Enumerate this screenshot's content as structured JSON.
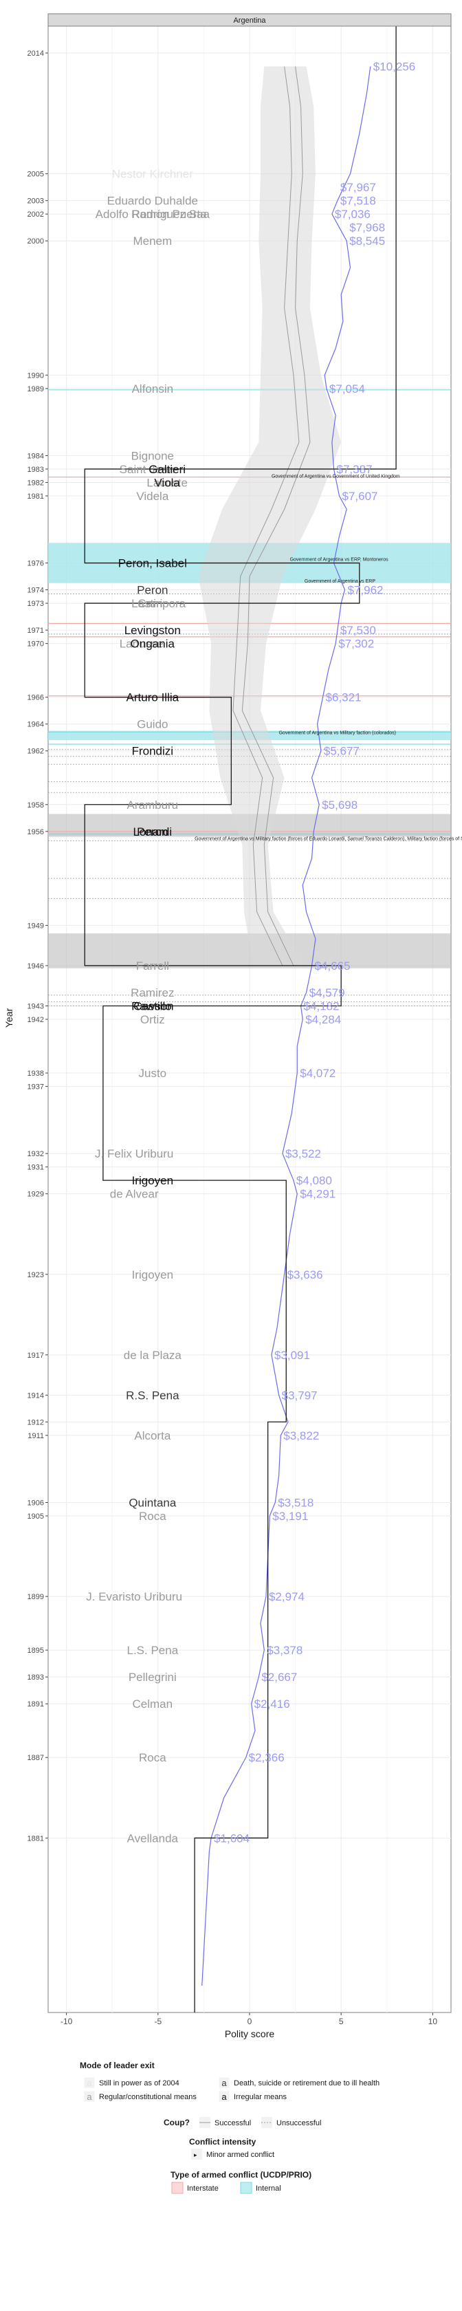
{
  "panel_title": "Argentina",
  "chart_data": {
    "type": "line",
    "xlabel": "Polity score",
    "ylabel": "Year",
    "xlim": [
      -11,
      11
    ],
    "ylim": [
      1868,
      2016
    ],
    "x_ticks": [
      -10,
      -5,
      0,
      5,
      10
    ],
    "y_ticks": [
      1881,
      1887,
      1891,
      1893,
      1895,
      1899,
      1905,
      1906,
      1911,
      1912,
      1914,
      1917,
      1923,
      1929,
      1931,
      1932,
      1937,
      1938,
      1942,
      1943,
      1946,
      1949,
      1956,
      1958,
      1962,
      1964,
      1966,
      1970,
      1971,
      1973,
      1974,
      1976,
      1981,
      1982,
      1983,
      1984,
      1989,
      1990,
      2000,
      2002,
      2003,
      2005,
      2014
    ],
    "grid": true,
    "polity_steps": [
      {
        "from": 1868,
        "to": 1881,
        "value": -3
      },
      {
        "from": 1881,
        "to": 1912,
        "value": 1
      },
      {
        "from": 1912,
        "to": 1916,
        "value": 2
      },
      {
        "from": 1916,
        "to": 1930,
        "value": 2
      },
      {
        "from": 1930,
        "to": 1943,
        "value": -8
      },
      {
        "from": 1943,
        "to": 1946,
        "value": 5
      },
      {
        "from": 1946,
        "to": 1955,
        "value": -9
      },
      {
        "from": 1955,
        "to": 1958,
        "value": -9
      },
      {
        "from": 1958,
        "to": 1966,
        "value": -1
      },
      {
        "from": 1966,
        "to": 1973,
        "value": -9
      },
      {
        "from": 1973,
        "to": 1976,
        "value": 6
      },
      {
        "from": 1976,
        "to": 1983,
        "value": -9
      },
      {
        "from": 1983,
        "to": 1990,
        "value": 8
      },
      {
        "from": 1990,
        "to": 2016,
        "value": 8
      }
    ],
    "gdp_labels": [
      {
        "year": 2013,
        "text": "$10,256"
      },
      {
        "year": 2004,
        "text": "$7,967"
      },
      {
        "year": 2003,
        "text": "$7,518"
      },
      {
        "year": 2002,
        "text": "$7,036"
      },
      {
        "year": 2001,
        "text": "$7,968"
      },
      {
        "year": 2000,
        "text": "$8,545"
      },
      {
        "year": 1989,
        "text": "$7,054"
      },
      {
        "year": 1983,
        "text": "$7,387"
      },
      {
        "year": 1981,
        "text": "$7,607"
      },
      {
        "year": 1974,
        "text": "$7,962"
      },
      {
        "year": 1971,
        "text": "$7,530"
      },
      {
        "year": 1970,
        "text": "$7,302"
      },
      {
        "year": 1966,
        "text": "$6,321"
      },
      {
        "year": 1962,
        "text": "$5,677"
      },
      {
        "year": 1958,
        "text": "$5,698"
      },
      {
        "year": 1946,
        "text": "$4,665"
      },
      {
        "year": 1944,
        "text": "$4,579"
      },
      {
        "year": 1943,
        "text": "$4,182"
      },
      {
        "year": 1942,
        "text": "$4,284"
      },
      {
        "year": 1938,
        "text": "$4,072"
      },
      {
        "year": 1932,
        "text": "$3,522"
      },
      {
        "year": 1930,
        "text": "$4,080"
      },
      {
        "year": 1929,
        "text": "$4,291"
      },
      {
        "year": 1923,
        "text": "$3,636"
      },
      {
        "year": 1917,
        "text": "$3,091"
      },
      {
        "year": 1914,
        "text": "$3,797"
      },
      {
        "year": 1911,
        "text": "$3,822"
      },
      {
        "year": 1906,
        "text": "$3,518"
      },
      {
        "year": 1905,
        "text": "$3,191"
      },
      {
        "year": 1899,
        "text": "$2,974"
      },
      {
        "year": 1895,
        "text": "$3,378"
      },
      {
        "year": 1893,
        "text": "$2,667"
      },
      {
        "year": 1891,
        "text": "$2,416"
      },
      {
        "year": 1887,
        "text": "$2,366"
      },
      {
        "year": 1881,
        "text": "$1,604"
      }
    ],
    "gdp_line": [
      [
        1870,
        -2.6
      ],
      [
        1875,
        -2.4
      ],
      [
        1880,
        -2.2
      ],
      [
        1881,
        -2.1
      ],
      [
        1884,
        -1.4
      ],
      [
        1887,
        -0.2
      ],
      [
        1889,
        0.3
      ],
      [
        1891,
        0.1
      ],
      [
        1893,
        0.5
      ],
      [
        1895,
        0.8
      ],
      [
        1897,
        0.6
      ],
      [
        1899,
        0.9
      ],
      [
        1902,
        1.0
      ],
      [
        1905,
        1.1
      ],
      [
        1906,
        1.4
      ],
      [
        1908,
        1.6
      ],
      [
        1911,
        1.7
      ],
      [
        1912,
        2.1
      ],
      [
        1914,
        1.6
      ],
      [
        1917,
        1.2
      ],
      [
        1919,
        1.5
      ],
      [
        1923,
        1.9
      ],
      [
        1926,
        2.2
      ],
      [
        1929,
        2.6
      ],
      [
        1930,
        2.4
      ],
      [
        1932,
        1.8
      ],
      [
        1935,
        2.3
      ],
      [
        1938,
        2.6
      ],
      [
        1940,
        2.6
      ],
      [
        1942,
        2.9
      ],
      [
        1943,
        2.8
      ],
      [
        1944,
        3.1
      ],
      [
        1946,
        3.4
      ],
      [
        1948,
        3.6
      ],
      [
        1950,
        3.1
      ],
      [
        1952,
        2.9
      ],
      [
        1954,
        3.4
      ],
      [
        1956,
        3.5
      ],
      [
        1958,
        3.8
      ],
      [
        1960,
        3.4
      ],
      [
        1962,
        3.9
      ],
      [
        1964,
        3.7
      ],
      [
        1966,
        4.0
      ],
      [
        1968,
        4.3
      ],
      [
        1970,
        4.7
      ],
      [
        1971,
        4.8
      ],
      [
        1973,
        5.0
      ],
      [
        1974,
        5.2
      ],
      [
        1976,
        4.6
      ],
      [
        1978,
        4.9
      ],
      [
        1980,
        5.3
      ],
      [
        1981,
        4.9
      ],
      [
        1983,
        4.6
      ],
      [
        1985,
        4.5
      ],
      [
        1987,
        4.7
      ],
      [
        1989,
        4.2
      ],
      [
        1990,
        4.1
      ],
      [
        1992,
        4.7
      ],
      [
        1994,
        5.1
      ],
      [
        1996,
        5.0
      ],
      [
        1998,
        5.5
      ],
      [
        2000,
        5.3
      ],
      [
        2002,
        4.5
      ],
      [
        2003,
        4.8
      ],
      [
        2005,
        5.5
      ],
      [
        2008,
        6.0
      ],
      [
        2011,
        6.4
      ],
      [
        2013,
        6.6
      ]
    ],
    "grey_band": [
      [
        1946,
        0.2,
        3.0
      ],
      [
        1950,
        -0.3,
        1.3
      ],
      [
        1955,
        -0.4,
        1.0
      ],
      [
        1960,
        -1.6,
        1.9
      ],
      [
        1965,
        -2.2,
        0.6
      ],
      [
        1970,
        -2.1,
        0.9
      ],
      [
        1975,
        -2.8,
        1.8
      ],
      [
        1980,
        -1.5,
        3.6
      ],
      [
        1985,
        0.5,
        5.0
      ],
      [
        1990,
        0.6,
        3.9
      ],
      [
        1995,
        0.7,
        3.3
      ],
      [
        2000,
        0.5,
        3.4
      ],
      [
        2005,
        0.6,
        3.6
      ],
      [
        2010,
        0.6,
        3.5
      ],
      [
        2013,
        0.8,
        3.1
      ]
    ],
    "grey_lines": [
      {
        "values": [
          [
            1946,
            1.8
          ],
          [
            1950,
            0.4
          ],
          [
            1955,
            0.2
          ],
          [
            1960,
            0.7
          ],
          [
            1965,
            -0.9
          ],
          [
            1970,
            -0.7
          ],
          [
            1975,
            -0.5
          ],
          [
            1980,
            1.2
          ],
          [
            1985,
            2.7
          ],
          [
            1990,
            2.4
          ],
          [
            1995,
            1.9
          ],
          [
            2000,
            2.1
          ],
          [
            2005,
            2.3
          ],
          [
            2010,
            2.2
          ],
          [
            2013,
            1.9
          ]
        ]
      },
      {
        "values": [
          [
            1946,
            2.4
          ],
          [
            1950,
            1.0
          ],
          [
            1955,
            0.8
          ],
          [
            1960,
            1.3
          ],
          [
            1965,
            -0.4
          ],
          [
            1970,
            -0.1
          ],
          [
            1975,
            0.0
          ],
          [
            1980,
            1.9
          ],
          [
            1985,
            3.3
          ],
          [
            1990,
            3.0
          ],
          [
            1995,
            2.5
          ],
          [
            2000,
            2.6
          ],
          [
            2005,
            2.9
          ],
          [
            2010,
            2.8
          ],
          [
            2013,
            2.5
          ]
        ]
      }
    ],
    "leaders": [
      {
        "name": "Nestor Kirchner",
        "year": 2005,
        "style": "inpower",
        "x": -5.3
      },
      {
        "name": "Eduardo Duhalde",
        "year": 2003,
        "style": "regular",
        "x": -5.3
      },
      {
        "name": "Adolfo Rodríguez Saa",
        "year": 2002,
        "style": "regular",
        "x": -5.3
      },
      {
        "name": "Ramon Puerta",
        "year": 2002,
        "style": "regular",
        "x": -4.4
      },
      {
        "name": "Menem",
        "year": 2000,
        "style": "regular",
        "x": -5.3
      },
      {
        "name": "Alfonsin",
        "year": 1989,
        "style": "regular",
        "x": -5.3
      },
      {
        "name": "Bignone",
        "year": 1984,
        "style": "regular",
        "x": -5.3
      },
      {
        "name": "Saint Jean",
        "year": 1983,
        "style": "regular",
        "x": -5.6
      },
      {
        "name": "Galtieri",
        "year": 1983,
        "style": "irregular",
        "x": -4.5
      },
      {
        "name": "Lacoste",
        "year": 1982,
        "style": "regular",
        "x": -4.5
      },
      {
        "name": "Viola",
        "year": 1982,
        "style": "irregular",
        "x": -4.5
      },
      {
        "name": "Videla",
        "year": 1981,
        "style": "regular",
        "x": -5.3
      },
      {
        "name": "Peron, Isabel",
        "year": 1976,
        "style": "irregular",
        "x": -5.3
      },
      {
        "name": "Peron",
        "year": 1974,
        "style": "death",
        "x": -5.3
      },
      {
        "name": "Lastiri",
        "year": 1973,
        "style": "regular",
        "x": -5.6
      },
      {
        "name": "Campora",
        "year": 1973,
        "style": "regular",
        "x": -4.8
      },
      {
        "name": "Levingston",
        "year": 1971,
        "style": "irregular",
        "x": -5.3
      },
      {
        "name": "Lanusse",
        "year": 1970,
        "style": "regular",
        "x": -5.9
      },
      {
        "name": "Ongania",
        "year": 1970,
        "style": "irregular",
        "x": -5.3
      },
      {
        "name": "Arturo Illia",
        "year": 1966,
        "style": "irregular",
        "x": -5.3
      },
      {
        "name": "Guido",
        "year": 1964,
        "style": "regular",
        "x": -5.3
      },
      {
        "name": "Frondizi",
        "year": 1962,
        "style": "irregular",
        "x": -5.3
      },
      {
        "name": "Aramburu",
        "year": 1958,
        "style": "regular",
        "x": -5.3
      },
      {
        "name": "Peron",
        "year": 1956,
        "style": "irregular",
        "x": -5.3
      },
      {
        "name": "Lonardi",
        "year": 1956,
        "style": "irregular",
        "x": -5.3
      },
      {
        "name": "Farrell",
        "year": 1946,
        "style": "regular",
        "x": -5.3
      },
      {
        "name": "Ramirez",
        "year": 1944,
        "style": "regular",
        "x": -5.3
      },
      {
        "name": "Rawson",
        "year": 1943,
        "style": "irregular",
        "x": -5.3
      },
      {
        "name": "Castillo",
        "year": 1943,
        "style": "irregular",
        "x": -5.3
      },
      {
        "name": "Ortiz",
        "year": 1942,
        "style": "regular",
        "x": -5.3
      },
      {
        "name": "Justo",
        "year": 1938,
        "style": "regular",
        "x": -5.3
      },
      {
        "name": "J. Felix Uriburu",
        "year": 1932,
        "style": "regular",
        "x": -6.3
      },
      {
        "name": "Irigoyen",
        "year": 1930,
        "style": "irregular",
        "x": -5.3
      },
      {
        "name": "de Alvear",
        "year": 1929,
        "style": "regular",
        "x": -6.3
      },
      {
        "name": "Irigoyen",
        "year": 1923,
        "style": "regular",
        "x": -5.3
      },
      {
        "name": "de la Plaza",
        "year": 1917,
        "style": "regular",
        "x": -5.3
      },
      {
        "name": "R.S. Pena",
        "year": 1914,
        "style": "death",
        "x": -5.3
      },
      {
        "name": "Alcorta",
        "year": 1911,
        "style": "regular",
        "x": -5.3
      },
      {
        "name": "Quintana",
        "year": 1906,
        "style": "death",
        "x": -5.3
      },
      {
        "name": "Roca",
        "year": 1905,
        "style": "regular",
        "x": -5.3
      },
      {
        "name": "J. Evaristo Uriburu",
        "year": 1899,
        "style": "regular",
        "x": -6.3
      },
      {
        "name": "L.S. Pena",
        "year": 1895,
        "style": "regular",
        "x": -5.3
      },
      {
        "name": "Pellegrini",
        "year": 1893,
        "style": "regular",
        "x": -5.3
      },
      {
        "name": "Celman",
        "year": 1891,
        "style": "regular",
        "x": -5.3
      },
      {
        "name": "Roca",
        "year": 1887,
        "style": "regular",
        "x": -5.3
      },
      {
        "name": "Avellanda",
        "year": 1881,
        "style": "regular",
        "x": -5.3
      }
    ],
    "internal_conflicts": [
      {
        "from": 1974.5,
        "to": 1977.5
      },
      {
        "from": 1962.8,
        "to": 1963.5
      },
      {
        "from": 1955.7,
        "to": 1955.9
      }
    ],
    "grey_coups": [
      {
        "from": 1955.6,
        "to": 1957.3
      },
      {
        "from": 1945.8,
        "to": 1948.4
      }
    ],
    "interstate_lines": [
      1982.4,
      1971.5,
      1970.5,
      1966.1,
      1956.0
    ],
    "internal_lines": [
      1988.9,
      1963.4,
      1962.5
    ],
    "dotted_coup_lines": [
      1973.7,
      1970.7,
      1962.1,
      1961.6,
      1961.0,
      1959.7,
      1958.9,
      1955.3,
      1952.5,
      1951.0,
      1943.8,
      1943.3,
      1943.0
    ],
    "conflict_labels": [
      {
        "year": 1982.5,
        "text": "Government of Argentina vs Government of United Kingdom",
        "x": 1.2
      },
      {
        "year": 1976.3,
        "text": "Government of Argentina vs ERP, Montoneros",
        "x": 2.2
      },
      {
        "year": 1974.7,
        "text": "Government of Argentina vs ERP",
        "x": 3.0
      },
      {
        "year": 1963.4,
        "text": "Government of Argentina vs Military faction (colorados)",
        "x": 1.6
      },
      {
        "year": 1955.5,
        "text": "Government of Argentina vs Military faction (forces of Eduardo Lonardi, Samuel Toranzo Calderon), Military faction (forces of Samuel",
        "x": -3.0
      }
    ],
    "legend": {
      "exit_title": "Mode of leader exit",
      "exit_items": [
        {
          "key": "a",
          "label": "Still in power as of 2004",
          "style": "inpower"
        },
        {
          "key": "a",
          "label": "Death, suicide or retirement due to ill health",
          "style": "death"
        },
        {
          "key": "a",
          "label": "Regular/constitutional means",
          "style": "regular"
        },
        {
          "key": "a",
          "label": "Irregular means",
          "style": "irregular"
        }
      ],
      "coup_title": "Coup?",
      "coup_items": [
        "Successful",
        "Unsuccessful"
      ],
      "intensity_title": "Conflict intensity",
      "intensity_items": [
        "Minor armed conflict"
      ],
      "type_title": "Type of armed conflict (UCDP/PRIO)",
      "type_items": [
        "Interstate",
        "Internal"
      ]
    }
  }
}
